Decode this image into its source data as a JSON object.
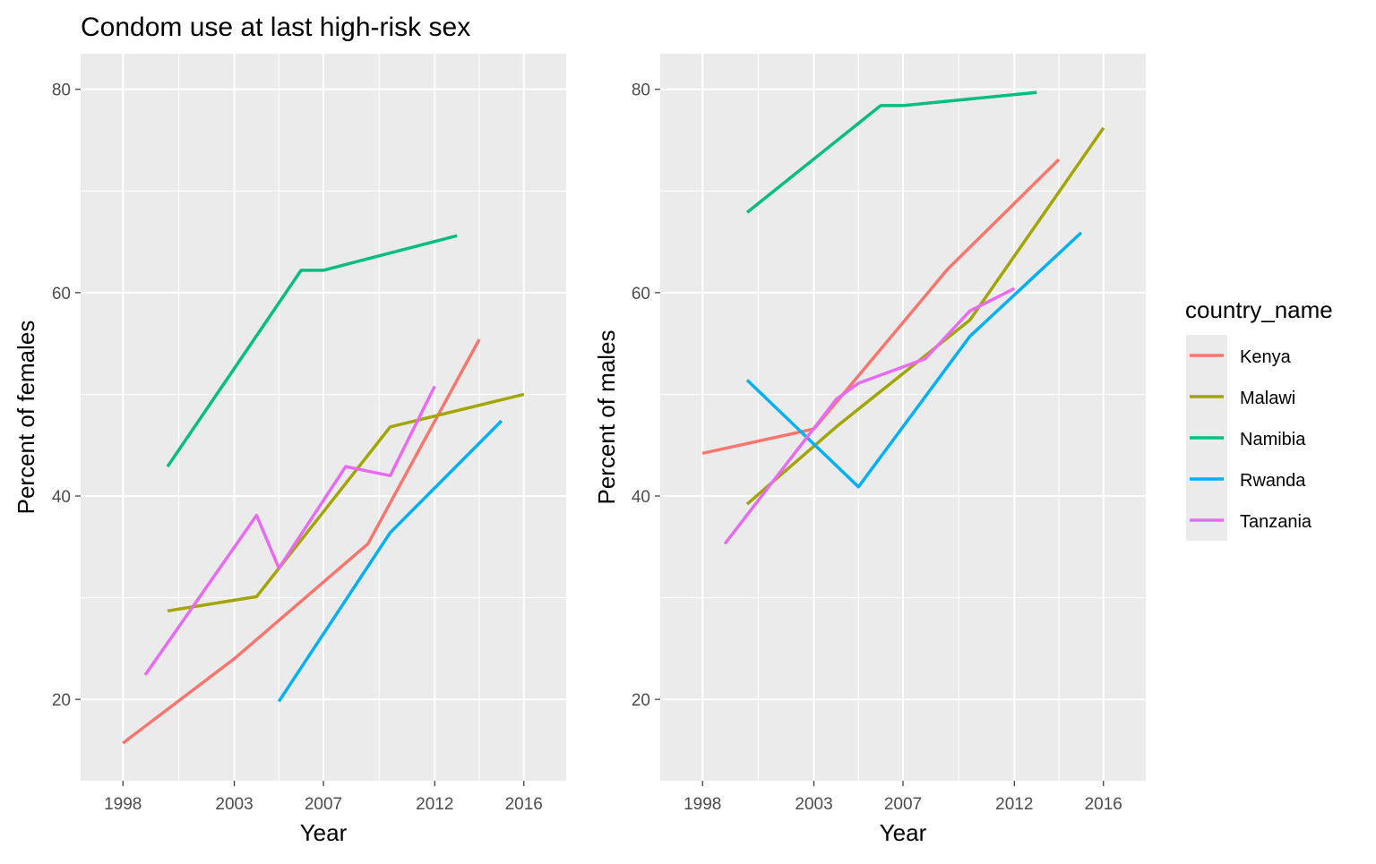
{
  "figure": {
    "title": "Condom use at last high-risk sex"
  },
  "legend": {
    "title": "country_name",
    "entries": [
      {
        "name": "Kenya",
        "color": "#F8766D"
      },
      {
        "name": "Malawi",
        "color": "#A3A500"
      },
      {
        "name": "Namibia",
        "color": "#00BF7D"
      },
      {
        "name": "Rwanda",
        "color": "#00B0F6"
      },
      {
        "name": "Tanzania",
        "color": "#E76BF3"
      }
    ]
  },
  "chart_data": [
    {
      "type": "line",
      "title": "Condom use at last high-risk sex",
      "xlabel": "Year",
      "ylabel": "Percent of females",
      "xlim": [
        1996.1,
        2017.9
      ],
      "ylim": [
        12,
        83.5
      ],
      "x_ticks": [
        1998,
        2003,
        2007,
        2012,
        2016
      ],
      "x_ticks_labels": [
        "1998",
        "2003",
        "2007",
        "2012",
        "2016"
      ],
      "y_ticks": [
        20,
        40,
        60,
        80
      ],
      "y_ticks_labels": [
        "20",
        "40",
        "60",
        "80"
      ],
      "grid": true,
      "series": [
        {
          "name": "Kenya",
          "color": "#F8766D",
          "points": [
            [
              1998,
              15.7
            ],
            [
              2003,
              24.0
            ],
            [
              2009,
              35.3
            ],
            [
              2014,
              55.4
            ]
          ]
        },
        {
          "name": "Malawi",
          "color": "#A3A500",
          "points": [
            [
              2000,
              28.7
            ],
            [
              2004,
              30.1
            ],
            [
              2010,
              46.8
            ],
            [
              2016,
              50.0
            ]
          ]
        },
        {
          "name": "Namibia",
          "color": "#00BF7D",
          "points": [
            [
              2000,
              42.9
            ],
            [
              2006,
              62.2
            ],
            [
              2007,
              62.2
            ],
            [
              2013,
              65.6
            ]
          ]
        },
        {
          "name": "Rwanda",
          "color": "#00B0F6",
          "points": [
            [
              2005,
              19.8
            ],
            [
              2010,
              36.4
            ],
            [
              2015,
              47.4
            ]
          ]
        },
        {
          "name": "Tanzania",
          "color": "#E76BF3",
          "points": [
            [
              1999,
              22.4
            ],
            [
              2004,
              38.1
            ],
            [
              2005,
              32.9
            ],
            [
              2008,
              42.9
            ],
            [
              2010,
              42.0
            ],
            [
              2012,
              50.8
            ]
          ]
        }
      ]
    },
    {
      "type": "line",
      "title": "",
      "xlabel": "Year",
      "ylabel": "Percent of males",
      "xlim": [
        1996.1,
        2017.9
      ],
      "ylim": [
        12,
        83.5
      ],
      "x_ticks": [
        1998,
        2003,
        2007,
        2012,
        2016
      ],
      "x_ticks_labels": [
        "1998",
        "2003",
        "2007",
        "2012",
        "2016"
      ],
      "y_ticks": [
        20,
        40,
        60,
        80
      ],
      "y_ticks_labels": [
        "20",
        "40",
        "60",
        "80"
      ],
      "grid": true,
      "series": [
        {
          "name": "Kenya",
          "color": "#F8766D",
          "points": [
            [
              1998,
              44.2
            ],
            [
              2003,
              46.6
            ],
            [
              2009,
              62.3
            ],
            [
              2014,
              73.1
            ]
          ]
        },
        {
          "name": "Malawi",
          "color": "#A3A500",
          "points": [
            [
              2000,
              39.2
            ],
            [
              2004,
              46.8
            ],
            [
              2010,
              57.3
            ],
            [
              2016,
              76.2
            ]
          ]
        },
        {
          "name": "Namibia",
          "color": "#00BF7D",
          "points": [
            [
              2000,
              67.9
            ],
            [
              2006,
              78.4
            ],
            [
              2007,
              78.4
            ],
            [
              2013,
              79.7
            ]
          ]
        },
        {
          "name": "Rwanda",
          "color": "#00B0F6",
          "points": [
            [
              2000,
              51.4
            ],
            [
              2005,
              40.9
            ],
            [
              2010,
              55.7
            ],
            [
              2015,
              65.9
            ]
          ]
        },
        {
          "name": "Tanzania",
          "color": "#E76BF3",
          "points": [
            [
              1999,
              35.3
            ],
            [
              2004,
              49.5
            ],
            [
              2005,
              51.1
            ],
            [
              2008,
              53.5
            ],
            [
              2010,
              58.2
            ],
            [
              2012,
              60.4
            ]
          ]
        }
      ]
    }
  ]
}
